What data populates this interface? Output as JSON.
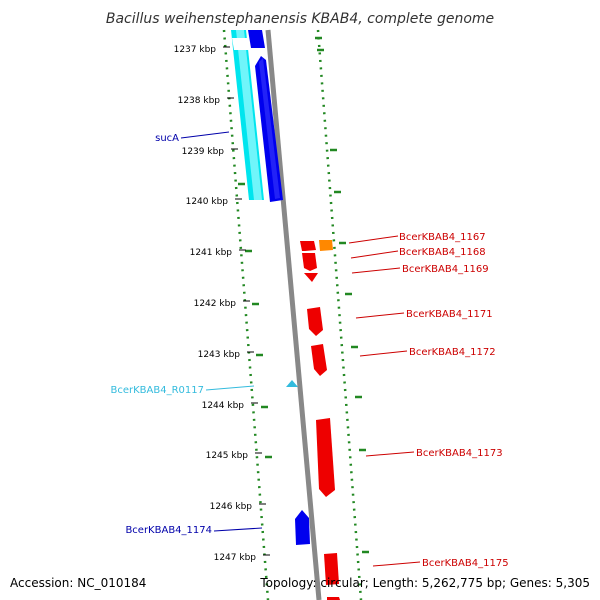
{
  "title": "Bacillus weihenstephanensis KBAB4, complete genome",
  "footer": {
    "accession": "Accession: NC_010184",
    "summary": "Topology: circular; Length: 5,262,775 bp; Genes: 5,305"
  },
  "ticks": [
    "1237 kbp",
    "1238 kbp",
    "1239 kbp",
    "1240 kbp",
    "1241 kbp",
    "1242 kbp",
    "1243 kbp",
    "1244 kbp",
    "1245 kbp",
    "1246 kbp",
    "1247 kbp"
  ],
  "gene_labels": [
    {
      "text": "sucA",
      "color": "#0000aa"
    },
    {
      "text": "BcerKBAB4_1167",
      "color": "#cc0000"
    },
    {
      "text": "BcerKBAB4_1168",
      "color": "#cc0000"
    },
    {
      "text": "BcerKBAB4_1169",
      "color": "#cc0000"
    },
    {
      "text": "BcerKBAB4_1171",
      "color": "#cc0000"
    },
    {
      "text": "BcerKBAB4_1172",
      "color": "#cc0000"
    },
    {
      "text": "BcerKBAB4_R0117",
      "color": "#33bbdd"
    },
    {
      "text": "BcerKBAB4_1173",
      "color": "#cc0000"
    },
    {
      "text": "BcerKBAB4_1174",
      "color": "#0000aa"
    },
    {
      "text": "BcerKBAB4_1175",
      "color": "#cc0000"
    }
  ],
  "colors": {
    "forward_cds": "#0000ee",
    "rrna_track": "#00e5ee",
    "reverse_cds": "#ee0000",
    "other_feature": "#ff8800",
    "backbone": "#888888",
    "gc_dots": "#228822"
  }
}
